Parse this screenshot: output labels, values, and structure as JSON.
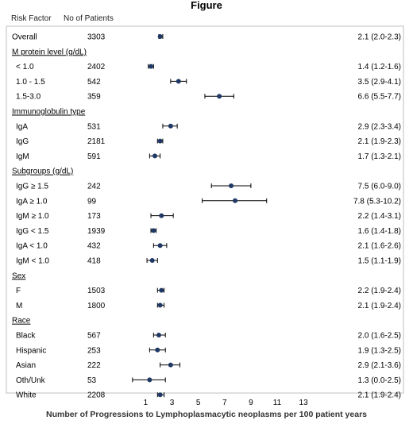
{
  "title": "Figure",
  "headers": {
    "factor": "Risk Factor",
    "n": "No of Patients"
  },
  "chart_data": {
    "type": "forest",
    "xlabel": "Number of Progressions to Lymphoplasmacytic neoplasms per 100 patient years",
    "x_ticks": [
      1,
      3,
      5,
      7,
      9,
      11,
      13
    ],
    "xlim": [
      -1.5,
      13
    ],
    "rows": [
      {
        "kind": "item",
        "label": "Overall",
        "n": "3303",
        "est": 2.1,
        "lo": 2.0,
        "hi": 2.3,
        "text": "2.1 (2.0-2.3)"
      },
      {
        "kind": "group",
        "label": "M protein level (g/dL)"
      },
      {
        "kind": "item",
        "label": "< 1.0",
        "n": "2402",
        "est": 1.4,
        "lo": 1.2,
        "hi": 1.6,
        "text": "1.4 (1.2-1.6)"
      },
      {
        "kind": "item",
        "label": "1.0 - 1.5",
        "n": "542",
        "est": 3.5,
        "lo": 2.9,
        "hi": 4.1,
        "text": "3.5 (2.9-4.1)"
      },
      {
        "kind": "item",
        "label": "1.5-3.0",
        "n": "359",
        "est": 6.6,
        "lo": 5.5,
        "hi": 7.7,
        "text": "6.6 (5.5-7.7)"
      },
      {
        "kind": "group",
        "label": "Immunoglobulin type"
      },
      {
        "kind": "item",
        "label": "IgA",
        "n": "531",
        "est": 2.9,
        "lo": 2.3,
        "hi": 3.4,
        "text": "2.9 (2.3-3.4)"
      },
      {
        "kind": "item",
        "label": "IgG",
        "n": "2181",
        "est": 2.1,
        "lo": 1.9,
        "hi": 2.3,
        "text": "2.1 (1.9-2.3)"
      },
      {
        "kind": "item",
        "label": "IgM",
        "n": "591",
        "est": 1.7,
        "lo": 1.3,
        "hi": 2.1,
        "text": "1.7 (1.3-2.1)"
      },
      {
        "kind": "group",
        "label": "Subgroups (g/dL)"
      },
      {
        "kind": "item",
        "label": "IgG ≥ 1.5",
        "n": "242",
        "est": 7.5,
        "lo": 6.0,
        "hi": 9.0,
        "text": "7.5 (6.0-9.0)"
      },
      {
        "kind": "item",
        "label": "IgA ≥ 1.0",
        "n": "99",
        "est": 7.8,
        "lo": 5.3,
        "hi": 10.2,
        "text": "7.8 (5.3-10.2)"
      },
      {
        "kind": "item",
        "label": "IgM ≥ 1.0",
        "n": "173",
        "est": 2.2,
        "lo": 1.4,
        "hi": 3.1,
        "text": "2.2 (1.4-3.1)"
      },
      {
        "kind": "item",
        "label": "IgG < 1.5",
        "n": "1939",
        "est": 1.6,
        "lo": 1.4,
        "hi": 1.8,
        "text": "1.6 (1.4-1.8)"
      },
      {
        "kind": "item",
        "label": "IgA < 1.0",
        "n": "432",
        "est": 2.1,
        "lo": 1.6,
        "hi": 2.6,
        "text": "2.1 (1.6-2.6)"
      },
      {
        "kind": "item",
        "label": "IgM < 1.0",
        "n": "418",
        "est": 1.5,
        "lo": 1.1,
        "hi": 1.9,
        "text": "1.5 (1.1-1.9)"
      },
      {
        "kind": "group",
        "label": "Sex"
      },
      {
        "kind": "item",
        "label": "F",
        "n": "1503",
        "est": 2.2,
        "lo": 1.9,
        "hi": 2.4,
        "text": "2.2 (1.9-2.4)"
      },
      {
        "kind": "item",
        "label": "M",
        "n": "1800",
        "est": 2.1,
        "lo": 1.9,
        "hi": 2.4,
        "text": "2.1 (1.9-2.4)"
      },
      {
        "kind": "group",
        "label": "Race"
      },
      {
        "kind": "item",
        "label": "Black",
        "n": "567",
        "est": 2.0,
        "lo": 1.6,
        "hi": 2.5,
        "text": "2.0 (1.6-2.5)"
      },
      {
        "kind": "item",
        "label": "Hispanic",
        "n": "253",
        "est": 1.9,
        "lo": 1.3,
        "hi": 2.5,
        "text": "1.9 (1.3-2.5)"
      },
      {
        "kind": "item",
        "label": "Asian",
        "n": "222",
        "est": 2.9,
        "lo": 2.1,
        "hi": 3.6,
        "text": "2.9 (2.1-3.6)"
      },
      {
        "kind": "item",
        "label": "Oth/Unk",
        "n": "53",
        "est": 1.3,
        "lo": 0.0,
        "hi": 2.5,
        "text": "1.3 (0.0-2.5)"
      },
      {
        "kind": "item",
        "label": "White",
        "n": "2208",
        "est": 2.1,
        "lo": 1.9,
        "hi": 2.4,
        "text": "2.1 (1.9-2.4)"
      }
    ]
  },
  "colors": {
    "border": "#bfbfbf",
    "marker": "#1f3864",
    "line": "#000000"
  }
}
